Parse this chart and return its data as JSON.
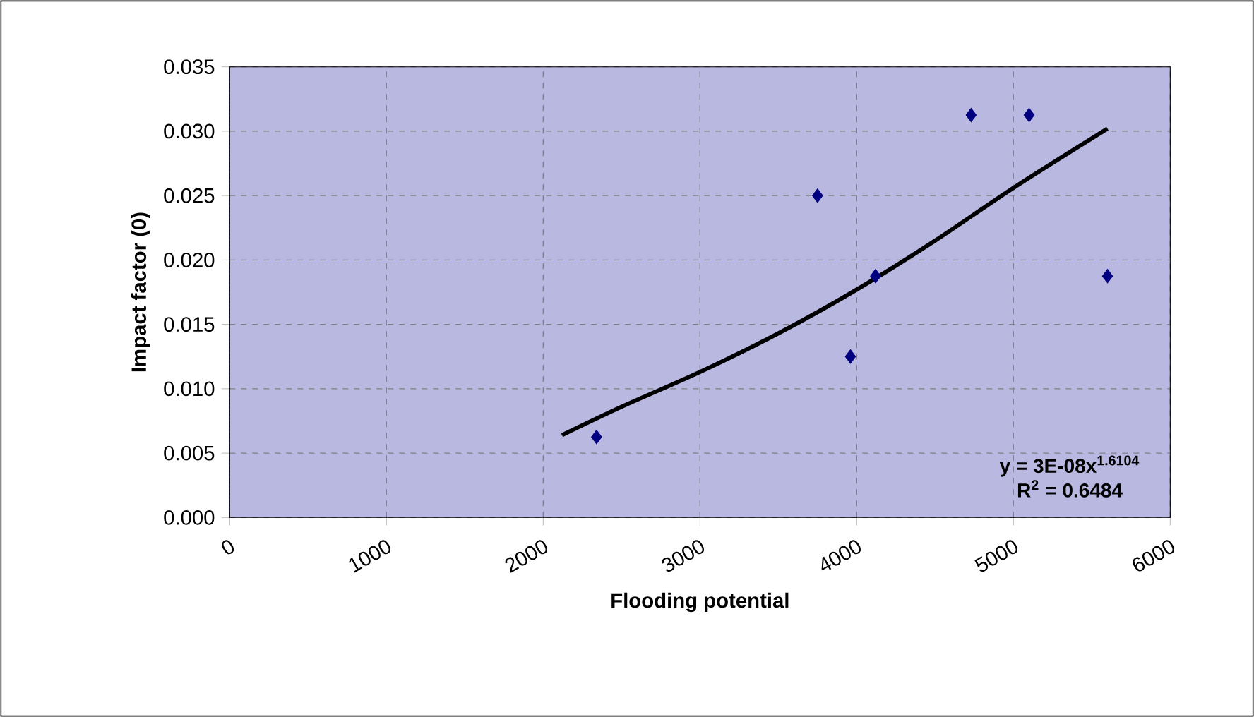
{
  "chart_data": {
    "type": "scatter",
    "xlabel": "Flooding potential",
    "ylabel": "Impact factor (0)",
    "xlim": [
      0,
      6000
    ],
    "xticks": [
      0,
      1000,
      2000,
      3000,
      4000,
      5000,
      6000
    ],
    "ylim": [
      0,
      0.035
    ],
    "yticks": [
      {
        "value": 0,
        "label": "0.000"
      },
      {
        "value": 0.005,
        "label": "0.005"
      },
      {
        "value": 0.01,
        "label": "0.010"
      },
      {
        "value": 0.015,
        "label": "0.015"
      },
      {
        "value": 0.02,
        "label": "0.020"
      },
      {
        "value": 0.025,
        "label": "0.025"
      },
      {
        "value": 0.03,
        "label": "0.030"
      },
      {
        "value": 0.035,
        "label": "0.035"
      }
    ],
    "grid": true,
    "marker": "diamond",
    "series": [
      {
        "color": "#000080",
        "x": [
          2340,
          3750,
          3960,
          4120,
          4730,
          5100,
          5600
        ],
        "values": [
          0.00625,
          0.025,
          0.0125,
          0.01875,
          0.03125,
          0.03125,
          0.01875
        ]
      },
      {
        "type": "line",
        "color": "#000000",
        "marker": "none",
        "x": [
          2120,
          2500,
          3000,
          3500,
          4000,
          4500,
          5000,
          5600
        ],
        "values": [
          0.0064,
          0.0086,
          0.0113,
          0.0143,
          0.0177,
          0.0215,
          0.0256,
          0.0302
        ]
      }
    ],
    "annotations": [
      "y = 3E-08x$^{1.6104}$",
      "R$^{2}$ = 0.6484"
    ]
  }
}
